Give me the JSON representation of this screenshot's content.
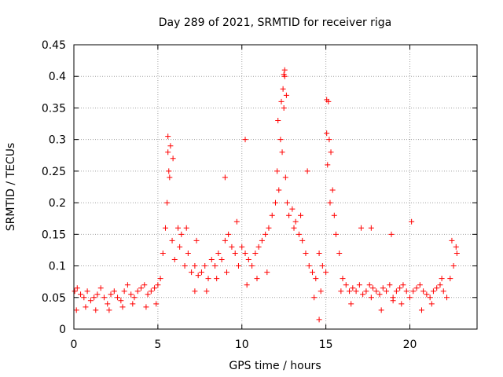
{
  "chart_data": {
    "type": "scatter",
    "title": "Day 289 of 2021, SRMTID for receiver riga",
    "xlabel": "GPS time / hours",
    "ylabel": "SRMTID / TECUs",
    "xlim": [
      0,
      24
    ],
    "ylim": [
      0,
      0.45
    ],
    "xticks": [
      0,
      5,
      10,
      15,
      20
    ],
    "xtick_labels": [
      "0",
      "5",
      "10",
      "15",
      "20"
    ],
    "yticks": [
      0,
      0.05,
      0.1,
      0.15,
      0.2,
      0.25,
      0.3,
      0.35,
      0.4,
      0.45
    ],
    "ytick_labels": [
      "0",
      "0.05",
      "0.1",
      "0.15",
      "0.2",
      "0.25",
      "0.3",
      "0.35",
      "0.4",
      "0.45"
    ],
    "grid": true,
    "marker": "+",
    "color": "#ff0000",
    "series": [
      {
        "name": "SRMTID",
        "x": [
          0.05,
          0.2,
          0.4,
          0.6,
          0.8,
          1.0,
          1.2,
          1.4,
          1.6,
          1.8,
          2.0,
          2.2,
          2.4,
          2.6,
          2.8,
          3.0,
          3.2,
          3.4,
          3.6,
          3.8,
          4.0,
          4.2,
          4.4,
          4.6,
          4.8,
          5.0,
          5.15,
          5.3,
          5.45,
          5.55,
          5.7,
          5.85,
          6.0,
          6.2,
          6.4,
          6.6,
          6.8,
          7.0,
          7.2,
          7.4,
          7.6,
          7.8,
          8.0,
          8.2,
          8.4,
          8.6,
          8.8,
          9.0,
          9.2,
          9.4,
          9.6,
          9.8,
          10.0,
          10.2,
          10.4,
          10.6,
          10.8,
          11.0,
          11.2,
          11.4,
          11.6,
          11.8,
          12.0,
          12.1,
          12.2,
          12.3,
          12.4,
          12.5,
          12.6,
          12.7,
          12.8,
          13.0,
          13.2,
          13.4,
          13.6,
          13.8,
          14.0,
          14.2,
          14.4,
          14.6,
          14.8,
          15.0,
          15.1,
          15.2,
          15.3,
          15.4,
          15.6,
          15.8,
          16.0,
          16.2,
          16.4,
          16.6,
          16.8,
          17.0,
          17.2,
          17.4,
          17.6,
          17.8,
          18.0,
          18.2,
          18.4,
          18.6,
          18.8,
          19.0,
          19.2,
          19.4,
          19.6,
          19.8,
          20.0,
          20.2,
          20.4,
          20.6,
          20.8,
          21.0,
          21.2,
          21.4,
          21.6,
          21.8,
          22.0,
          22.2,
          22.4,
          22.6,
          22.8,
          0.15,
          0.7,
          1.3,
          2.1,
          2.9,
          3.5,
          4.3,
          4.9,
          5.6,
          5.75,
          5.9,
          6.3,
          6.7,
          7.3,
          7.9,
          8.5,
          9.1,
          9.7,
          10.3,
          10.9,
          11.5,
          12.15,
          12.35,
          12.45,
          12.55,
          12.65,
          13.1,
          13.5,
          13.9,
          14.3,
          14.7,
          15.05,
          15.15,
          15.25,
          15.5,
          15.9,
          16.5,
          17.1,
          17.7,
          18.3,
          18.9,
          19.5,
          20.1,
          20.7,
          21.3,
          21.9,
          22.5,
          22.75,
          5.6,
          5.65,
          10.2,
          14.6,
          19.0,
          12.5,
          12.55,
          15.05,
          9.0,
          7.2,
          17.7
        ],
        "y": [
          0.06,
          0.065,
          0.055,
          0.05,
          0.06,
          0.045,
          0.05,
          0.055,
          0.065,
          0.05,
          0.04,
          0.055,
          0.06,
          0.05,
          0.045,
          0.06,
          0.07,
          0.055,
          0.05,
          0.06,
          0.065,
          0.07,
          0.055,
          0.06,
          0.065,
          0.07,
          0.08,
          0.12,
          0.16,
          0.2,
          0.24,
          0.14,
          0.11,
          0.16,
          0.15,
          0.1,
          0.12,
          0.09,
          0.1,
          0.085,
          0.09,
          0.1,
          0.08,
          0.11,
          0.1,
          0.12,
          0.11,
          0.14,
          0.15,
          0.13,
          0.12,
          0.1,
          0.13,
          0.12,
          0.11,
          0.1,
          0.12,
          0.13,
          0.14,
          0.15,
          0.16,
          0.18,
          0.2,
          0.25,
          0.22,
          0.3,
          0.28,
          0.35,
          0.24,
          0.2,
          0.18,
          0.19,
          0.17,
          0.15,
          0.14,
          0.12,
          0.1,
          0.09,
          0.08,
          0.12,
          0.1,
          0.09,
          0.26,
          0.3,
          0.28,
          0.22,
          0.15,
          0.12,
          0.08,
          0.07,
          0.06,
          0.065,
          0.06,
          0.07,
          0.055,
          0.06,
          0.07,
          0.065,
          0.06,
          0.055,
          0.065,
          0.06,
          0.07,
          0.05,
          0.06,
          0.065,
          0.07,
          0.06,
          0.05,
          0.06,
          0.065,
          0.07,
          0.06,
          0.055,
          0.05,
          0.06,
          0.065,
          0.07,
          0.06,
          0.05,
          0.08,
          0.1,
          0.12,
          0.03,
          0.035,
          0.03,
          0.03,
          0.035,
          0.04,
          0.035,
          0.04,
          0.28,
          0.29,
          0.27,
          0.13,
          0.16,
          0.14,
          0.06,
          0.08,
          0.09,
          0.17,
          0.07,
          0.08,
          0.09,
          0.33,
          0.36,
          0.38,
          0.4,
          0.37,
          0.16,
          0.18,
          0.25,
          0.05,
          0.06,
          0.31,
          0.36,
          0.2,
          0.18,
          0.06,
          0.04,
          0.16,
          0.05,
          0.03,
          0.15,
          0.04,
          0.17,
          0.03,
          0.04,
          0.08,
          0.14,
          0.13,
          0.305,
          0.25,
          0.3,
          0.015,
          0.045,
          0.403,
          0.41,
          0.363,
          0.24,
          0.06,
          0.16
        ]
      }
    ]
  }
}
